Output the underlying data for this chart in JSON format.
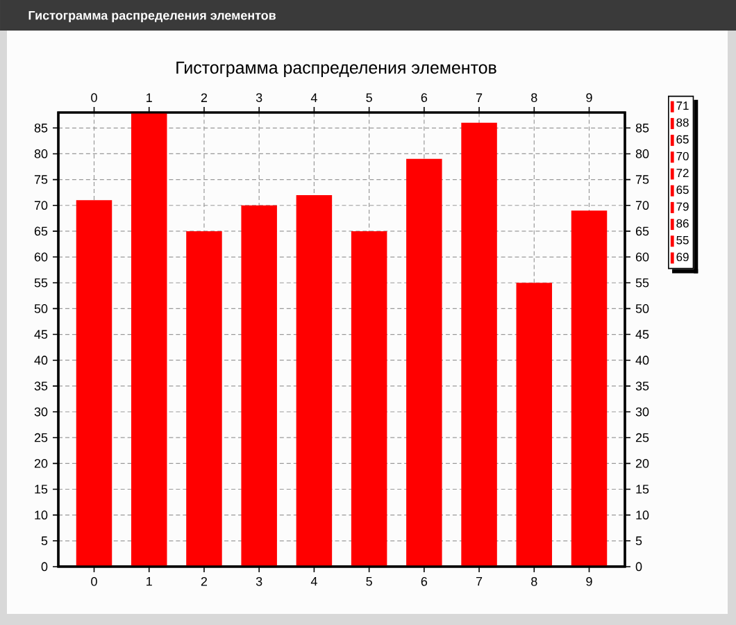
{
  "chart_data": {
    "type": "bar",
    "title": "Гистограмма распределения элементов",
    "annotations": [
      "Гистограмма распределения элементов"
    ],
    "x": [
      0,
      1,
      2,
      3,
      4,
      5,
      6,
      7,
      8,
      9
    ],
    "series": [
      {
        "name": "71",
        "color": "#ff0000",
        "values": [
          71,
          null,
          null,
          null,
          null,
          null,
          null,
          null,
          null,
          null
        ]
      },
      {
        "name": "88",
        "color": "#ff0000",
        "values": [
          null,
          88,
          null,
          null,
          null,
          null,
          null,
          null,
          null,
          null
        ]
      },
      {
        "name": "65",
        "color": "#ff0000",
        "values": [
          null,
          null,
          65,
          null,
          null,
          null,
          null,
          null,
          null,
          null
        ]
      },
      {
        "name": "70",
        "color": "#ff0000",
        "values": [
          null,
          null,
          null,
          70,
          null,
          null,
          null,
          null,
          null,
          null
        ]
      },
      {
        "name": "72",
        "color": "#ff0000",
        "values": [
          null,
          null,
          null,
          null,
          72,
          null,
          null,
          null,
          null,
          null
        ]
      },
      {
        "name": "65",
        "color": "#ff0000",
        "values": [
          null,
          null,
          null,
          null,
          null,
          65,
          null,
          null,
          null,
          null
        ]
      },
      {
        "name": "79",
        "color": "#ff0000",
        "values": [
          null,
          null,
          null,
          null,
          null,
          null,
          79,
          null,
          null,
          null
        ]
      },
      {
        "name": "86",
        "color": "#ff0000",
        "values": [
          null,
          null,
          null,
          null,
          null,
          null,
          null,
          86,
          null,
          null
        ]
      },
      {
        "name": "55",
        "color": "#ff0000",
        "values": [
          null,
          null,
          null,
          null,
          null,
          null,
          null,
          null,
          55,
          null
        ]
      },
      {
        "name": "69",
        "color": "#ff0000",
        "values": [
          null,
          null,
          null,
          null,
          null,
          null,
          null,
          null,
          null,
          69
        ]
      }
    ],
    "xlim": [
      -0.65,
      9.65
    ],
    "xticks": [
      0,
      1,
      2,
      3,
      4,
      5,
      6,
      7,
      8,
      9
    ],
    "x2lim": [
      -0.65,
      9.65
    ],
    "x2ticks": [
      0,
      1,
      2,
      3,
      4,
      5,
      6,
      7,
      8,
      9
    ],
    "ylim": [
      0,
      88
    ],
    "yticks": [
      0,
      5,
      10,
      15,
      20,
      25,
      30,
      35,
      40,
      45,
      50,
      55,
      60,
      65,
      70,
      75,
      80,
      85
    ],
    "y2lim": [
      0,
      88
    ],
    "y2ticks": [
      0,
      5,
      10,
      15,
      20,
      25,
      30,
      35,
      40,
      45,
      50,
      55,
      60,
      65,
      70,
      75,
      80,
      85
    ],
    "grid": true,
    "legend": "right"
  }
}
